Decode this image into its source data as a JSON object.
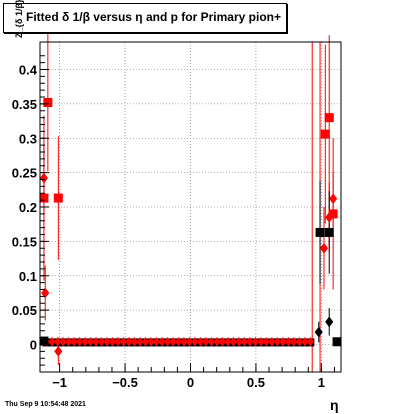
{
  "chart_data": {
    "type": "scatter",
    "title": "Fitted δ 1/β versus η and p for Primary pion+",
    "xlabel": "η",
    "ylabel": "Z_{δ 1/β}",
    "xlim": [
      -1.15,
      1.15
    ],
    "ylim": [
      -0.04,
      0.44
    ],
    "xticks": [
      -1,
      -0.5,
      0,
      0.5,
      1
    ],
    "xtick_labels": [
      "−1",
      "−0.5",
      "0",
      "0.5",
      "1"
    ],
    "yticks": [
      0,
      0.05,
      0.1,
      0.15,
      0.2,
      0.25,
      0.3,
      0.35,
      0.4
    ],
    "ytick_labels": [
      "0",
      "0.05",
      "0.1",
      "0.15",
      "0.2",
      "0.25",
      "0.3",
      "0.35",
      "0.4"
    ],
    "grid": true,
    "series": [
      {
        "marker": "diamond",
        "color": "#ff0000",
        "points": [
          {
            "x": -1.12,
            "y": 0.242,
            "err": 0.05
          },
          {
            "x": -1.11,
            "y": 0.075,
            "err": 0.04
          },
          {
            "x": -1.01,
            "y": -0.01,
            "err": 0.02
          },
          {
            "x": 1.02,
            "y": 0.14,
            "err": 0.06
          },
          {
            "x": 1.06,
            "y": 0.185,
            "err": 0.05
          },
          {
            "x": 1.09,
            "y": 0.212,
            "err": 0.04
          }
        ]
      },
      {
        "marker": "square",
        "color": "#ff0000",
        "points": [
          {
            "x": -1.12,
            "y": 0.213,
            "err": 0.12
          },
          {
            "x": -1.09,
            "y": 0.352,
            "err": 0.1
          },
          {
            "x": -1.01,
            "y": 0.213,
            "err": 0.09
          },
          {
            "x": 1.03,
            "y": 0.306,
            "err": 0.13
          },
          {
            "x": 1.06,
            "y": 0.33,
            "err": 0.12
          },
          {
            "x": 1.09,
            "y": 0.19,
            "err": 0.11
          }
        ]
      },
      {
        "marker": "square",
        "color": "#000000",
        "points": [
          {
            "x": -1.12,
            "y": 0.005,
            "err": 0.003
          },
          {
            "x": 0.99,
            "y": 0.163,
            "err": 0.075
          },
          {
            "x": 1.06,
            "y": 0.163,
            "err": 0.06
          },
          {
            "x": 1.12,
            "y": 0.004,
            "err": 0.003
          }
        ]
      },
      {
        "marker": "diamond",
        "color": "#000000",
        "points": [
          {
            "x": 0.98,
            "y": 0.018,
            "err": 0.015
          },
          {
            "x": 1.06,
            "y": 0.033,
            "err": 0.02
          }
        ]
      }
    ],
    "baseline": [
      {
        "x_from": -1.1,
        "x_to": 0.95,
        "y": 0.003,
        "marker": "square",
        "color": "#000000"
      },
      {
        "x_from": -1.1,
        "x_to": 0.95,
        "y": 0.004,
        "marker": "diamond",
        "color": "#ff0000"
      }
    ],
    "vertical_lines": [
      {
        "x": 0.93,
        "color": "#ff0000"
      },
      {
        "x": 0.99,
        "color": "#ff0000"
      }
    ]
  },
  "footer": {
    "timestamp": "Thu Sep  9 10:54:48 2021"
  }
}
